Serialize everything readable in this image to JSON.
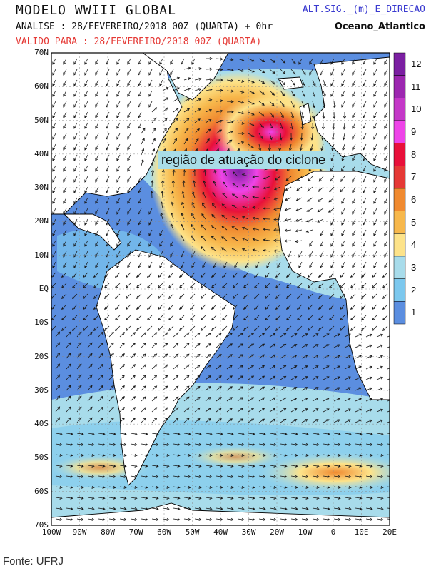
{
  "header": {
    "title": "MODELO WWIII GLOBAL",
    "analise": "ANALISE : 28/FEVEREIRO/2018 00Z  (QUARTA) + 0hr",
    "valido": "VALIDO PARA : 28/FEVEREIRO/2018 00Z  (QUARTA)",
    "parameter": "ALT.SIG._(m)_E_DIRECAO",
    "region": "Oceano_Atlantico"
  },
  "map": {
    "lat_labels": [
      "70N",
      "60N",
      "50N",
      "40N",
      "30N",
      "20N",
      "10N",
      "EQ",
      "10S",
      "20S",
      "30S",
      "40S",
      "50S",
      "60S",
      "70S"
    ],
    "lon_labels": [
      "100W",
      "90W",
      "80W",
      "70W",
      "60W",
      "50W",
      "40W",
      "30W",
      "20W",
      "10W",
      "0",
      "10E",
      "20E"
    ],
    "annotation": "região de atuação do ciclone",
    "colors": {
      "land": "#ffffff",
      "ocean_low": "#5b8ee0",
      "coast": "#000000"
    }
  },
  "colorbar": {
    "labels": [
      "12",
      "11",
      "10",
      "9",
      "8",
      "7",
      "6",
      "5",
      "4",
      "3",
      "2",
      "1"
    ],
    "colors": [
      "#7b1fa2",
      "#9c27b0",
      "#c438c8",
      "#ee44e8",
      "#e8103a",
      "#e53935",
      "#f08a30",
      "#f7b84c",
      "#fde38a",
      "#a8dceb",
      "#7cc8ee",
      "#5b8ee0"
    ]
  },
  "source": "Fonte: UFRJ"
}
